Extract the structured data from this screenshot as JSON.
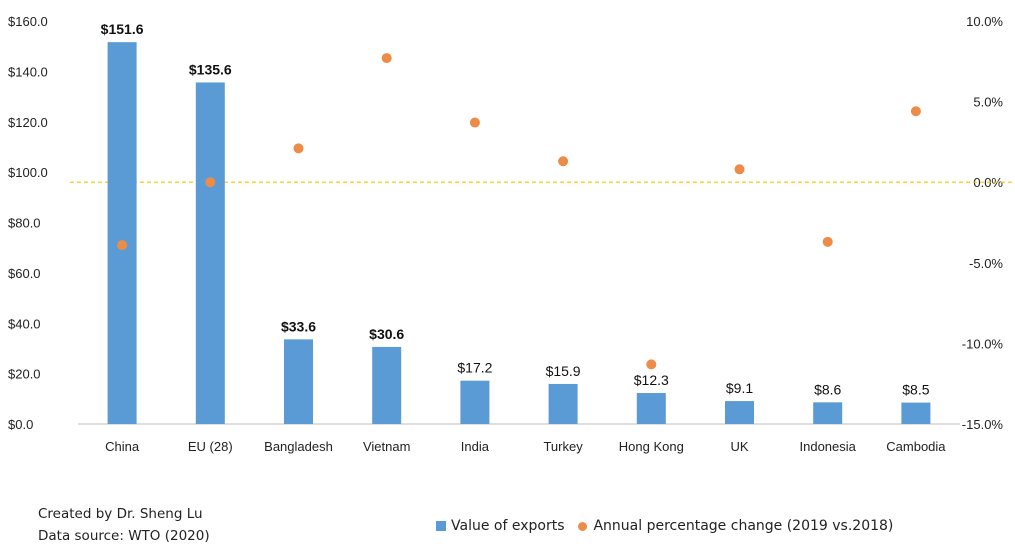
{
  "chart_data": {
    "type": "bar",
    "categories": [
      "China",
      "EU (28)",
      "Bangladesh",
      "Vietnam",
      "India",
      "Turkey",
      "Hong Kong",
      "UK",
      "Indonesia",
      "Cambodia"
    ],
    "series": [
      {
        "name": "Value of exports",
        "type": "bar",
        "axis": "left",
        "color": "#5b9bd5",
        "values": [
          151.6,
          135.6,
          33.6,
          30.6,
          17.2,
          15.9,
          12.3,
          9.1,
          8.6,
          8.5
        ],
        "labels": [
          "$151.6",
          "$135.6",
          "$33.6",
          "$30.6",
          "$17.2",
          "$15.9",
          "$12.3",
          "$9.1",
          "$8.6",
          "$8.5"
        ],
        "bold_labels": [
          true,
          true,
          true,
          true,
          false,
          false,
          false,
          false,
          false,
          false
        ]
      },
      {
        "name": "Annual percentage change (2019 vs.2018)",
        "type": "scatter",
        "axis": "right",
        "color": "#ed8c47",
        "values": [
          -3.9,
          0.0,
          2.1,
          7.7,
          3.7,
          1.3,
          -11.3,
          0.8,
          -3.7,
          4.4
        ]
      }
    ],
    "y_left": {
      "min": 0,
      "max": 160,
      "ticks": [
        0,
        20,
        40,
        60,
        80,
        100,
        120,
        140,
        160
      ],
      "tick_labels": [
        "$0.0",
        "$20.0",
        "$40.0",
        "$60.0",
        "$80.0",
        "$100.0",
        "$120.0",
        "$140.0",
        "$160.0"
      ]
    },
    "y_right": {
      "min": -15,
      "max": 10,
      "ticks": [
        -15,
        -10,
        -5,
        0,
        5,
        10
      ],
      "tick_labels": [
        "-15.0%",
        "-10.0%",
        "-5.0%",
        "0.0%",
        "5.0%",
        "10.0%"
      ]
    },
    "reference_line": {
      "axis": "right",
      "value": 0,
      "style": "dashed",
      "color": "#f0c800"
    },
    "grid": false,
    "legend_position": "bottom-right"
  },
  "notes": {
    "created_by": "Created by Dr. Sheng Lu",
    "source": "Data source: WTO (2020)"
  },
  "legend": {
    "bar_label": "Value of exports",
    "dot_label": "Annual percentage change (2019 vs.2018)"
  }
}
